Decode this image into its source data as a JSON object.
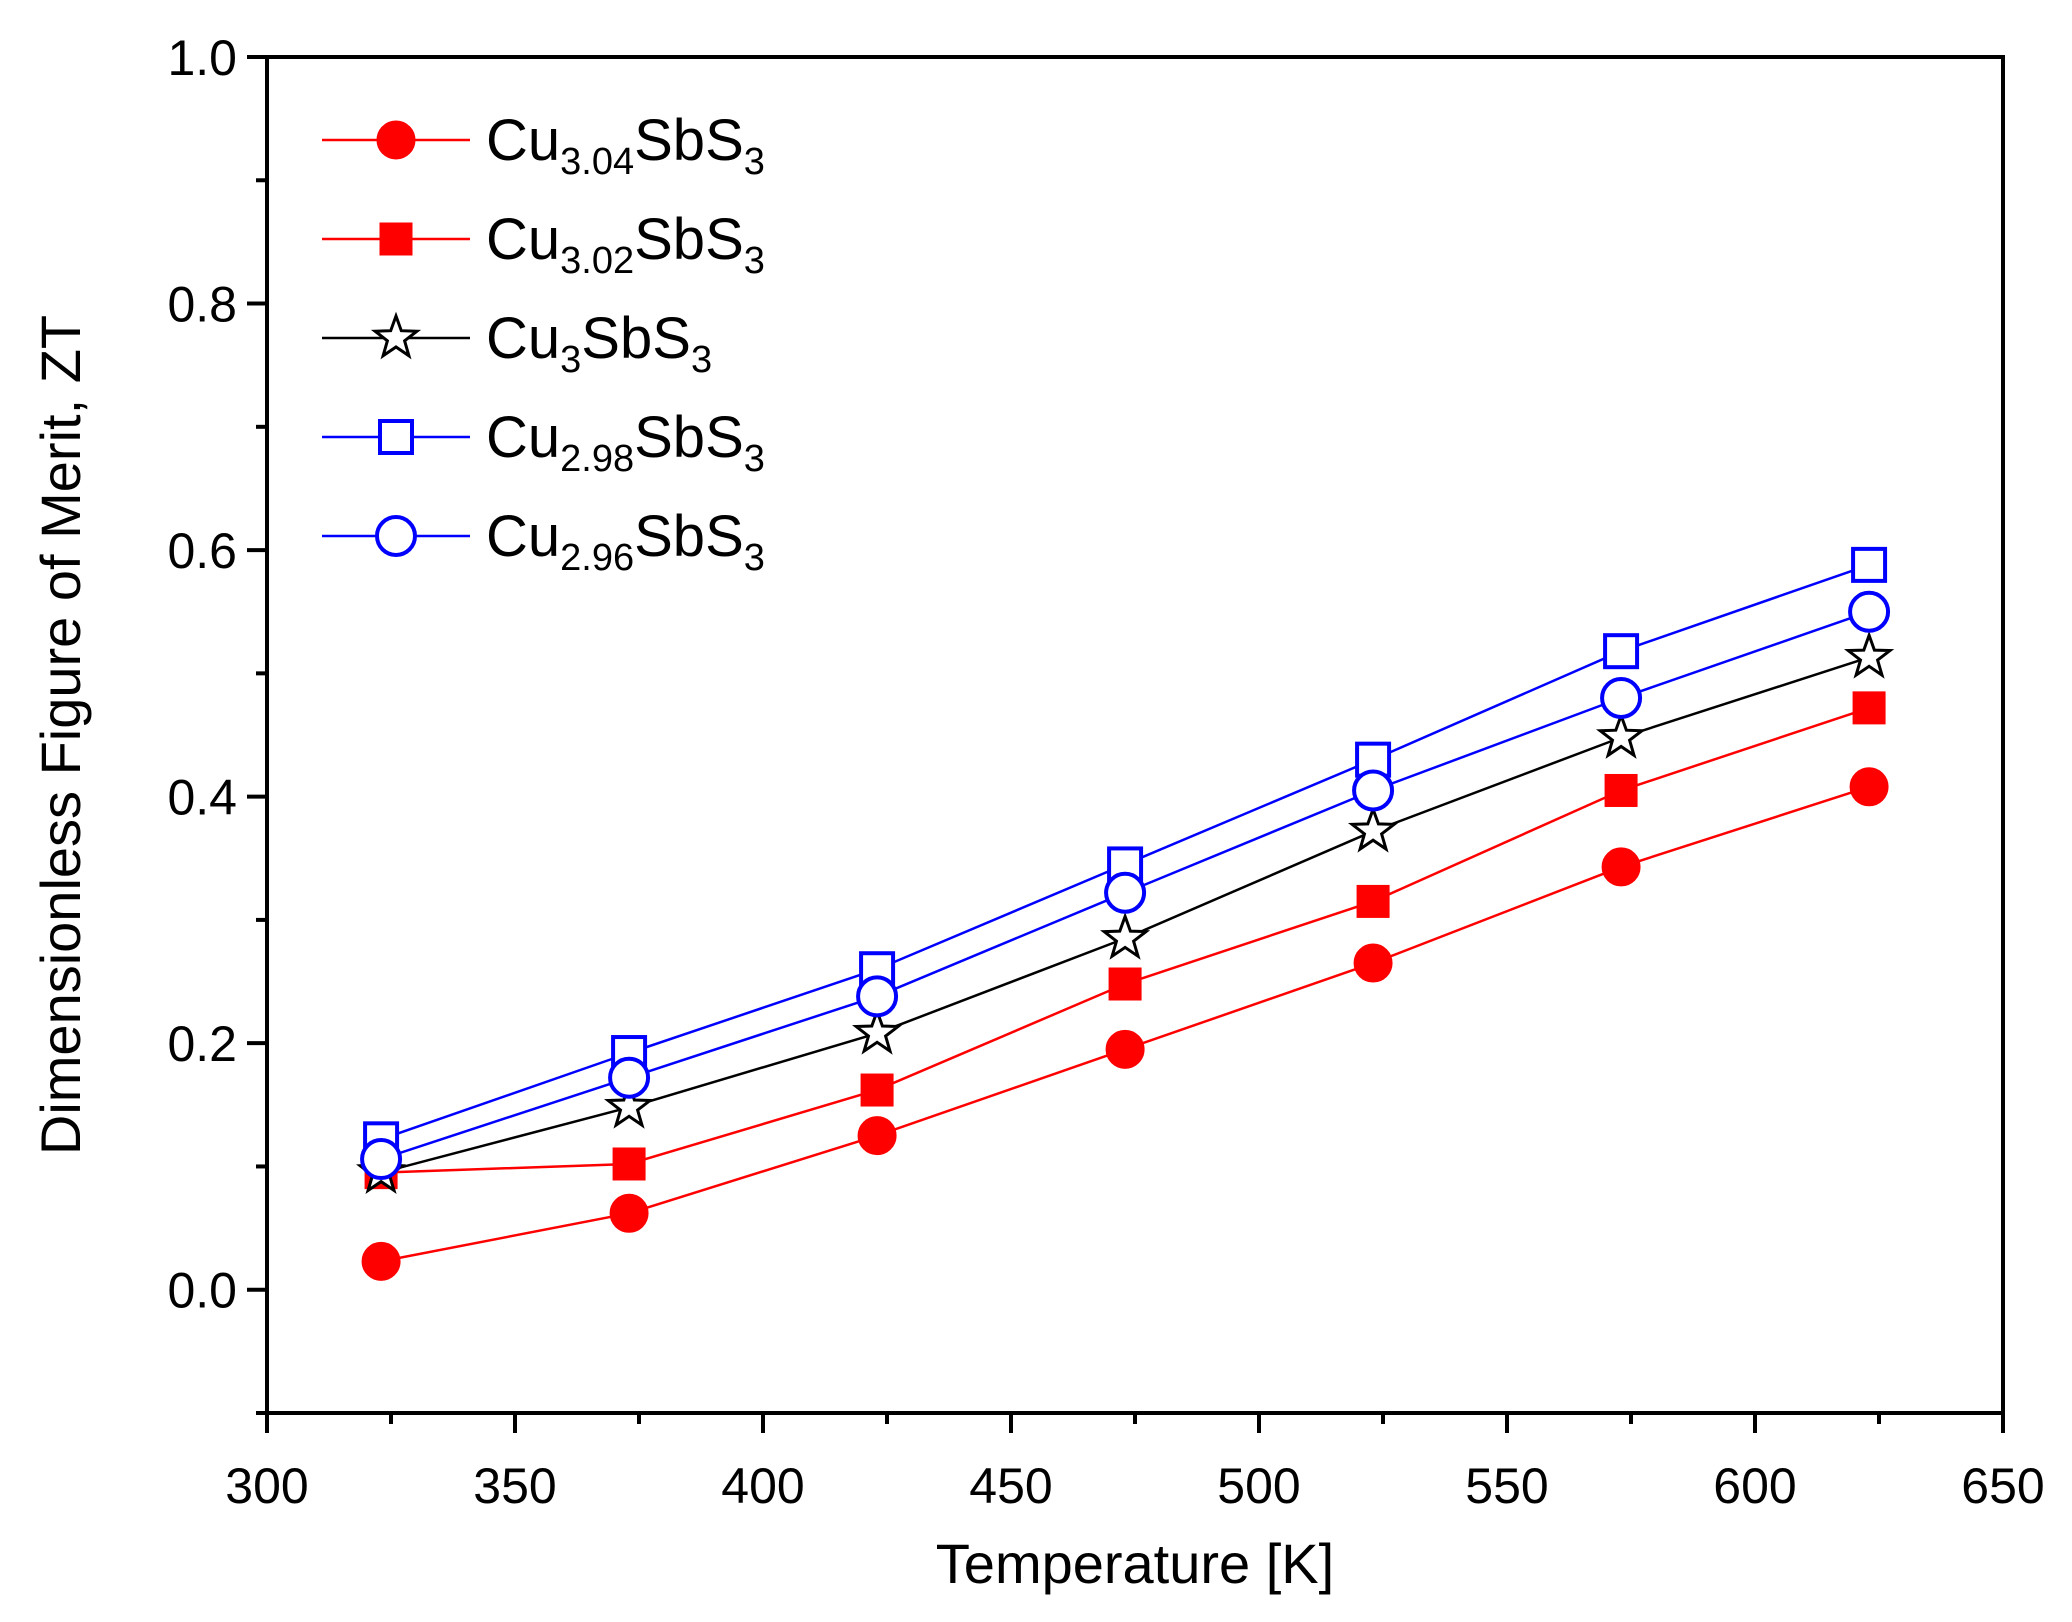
{
  "chart_data": {
    "type": "line",
    "title": "",
    "xlabel": "Temperature [K]",
    "ylabel": "Dimensionless Figure of Merit, ZT",
    "xlim": [
      300,
      650
    ],
    "ylim": [
      -0.1,
      1.0
    ],
    "xticks": [
      300,
      350,
      400,
      450,
      500,
      550,
      600,
      650
    ],
    "xtick_labels": [
      "300",
      "350",
      "400",
      "450",
      "500",
      "550",
      "600",
      "650"
    ],
    "yticks": [
      0.0,
      0.2,
      0.4,
      0.6,
      0.8,
      1.0
    ],
    "ytick_labels": [
      "0.0",
      "0.2",
      "0.4",
      "0.6",
      "0.8",
      "1.0"
    ],
    "grid": false,
    "legend_position": "top-left",
    "x": [
      323,
      373,
      423,
      473,
      523,
      573,
      623
    ],
    "series": [
      {
        "name": "Cu3.04SbS3",
        "label_parts": [
          {
            "t": "Cu",
            "sub": false
          },
          {
            "t": "3.04",
            "sub": true
          },
          {
            "t": "SbS",
            "sub": false
          },
          {
            "t": "3",
            "sub": true
          }
        ],
        "color": "#ff0000",
        "marker": "circle",
        "filled": true,
        "values": [
          0.023,
          0.062,
          0.125,
          0.195,
          0.265,
          0.343,
          0.408
        ]
      },
      {
        "name": "Cu3.02SbS3",
        "label_parts": [
          {
            "t": "Cu",
            "sub": false
          },
          {
            "t": "3.02",
            "sub": true
          },
          {
            "t": "SbS",
            "sub": false
          },
          {
            "t": "3",
            "sub": true
          }
        ],
        "color": "#ff0000",
        "marker": "square",
        "filled": true,
        "values": [
          0.095,
          0.102,
          0.162,
          0.248,
          0.315,
          0.405,
          0.472
        ]
      },
      {
        "name": "Cu3SbS3",
        "label_parts": [
          {
            "t": "Cu",
            "sub": false
          },
          {
            "t": "3",
            "sub": true
          },
          {
            "t": "SbS",
            "sub": false
          },
          {
            "t": "3",
            "sub": true
          }
        ],
        "color": "#000000",
        "marker": "star",
        "filled": false,
        "values": [
          0.095,
          0.148,
          0.208,
          0.285,
          0.372,
          0.448,
          0.513
        ]
      },
      {
        "name": "Cu2.98SbS3",
        "label_parts": [
          {
            "t": "Cu",
            "sub": false
          },
          {
            "t": "2.98",
            "sub": true
          },
          {
            "t": "SbS",
            "sub": false
          },
          {
            "t": "3",
            "sub": true
          }
        ],
        "color": "#0000ff",
        "marker": "square",
        "filled": false,
        "values": [
          0.122,
          0.192,
          0.26,
          0.345,
          0.43,
          0.518,
          0.588
        ]
      },
      {
        "name": "Cu2.96SbS3",
        "label_parts": [
          {
            "t": "Cu",
            "sub": false
          },
          {
            "t": "2.96",
            "sub": true
          },
          {
            "t": "SbS",
            "sub": false
          },
          {
            "t": "3",
            "sub": true
          }
        ],
        "color": "#0000ff",
        "marker": "circle",
        "filled": false,
        "values": [
          0.106,
          0.172,
          0.238,
          0.322,
          0.405,
          0.48,
          0.55
        ]
      }
    ]
  }
}
